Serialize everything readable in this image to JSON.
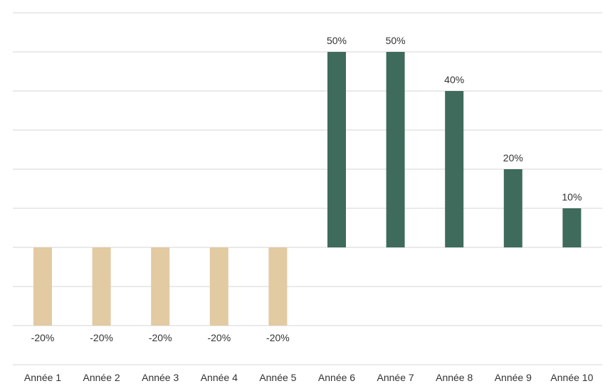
{
  "chart_data": {
    "type": "bar",
    "title": "",
    "xlabel": "",
    "ylabel": "",
    "categories": [
      "Année 1",
      "Année 2",
      "Année 3",
      "Année 4",
      "Année 5",
      "Année 6",
      "Année 7",
      "Année 8",
      "Année 9",
      "Année 10"
    ],
    "values": [
      -20,
      -20,
      -20,
      -20,
      -20,
      50,
      50,
      40,
      20,
      10
    ],
    "data_labels": [
      "-20%",
      "-20%",
      "-20%",
      "-20%",
      "-20%",
      "50%",
      "50%",
      "40%",
      "20%",
      "10%"
    ],
    "ylim": [
      -30,
      60
    ],
    "y_gridline_step": 10,
    "grid": true,
    "y_tick_labels_visible": false,
    "legend": "none",
    "colors": {
      "negative": "#E2CAA2",
      "positive": "#3E6B5C",
      "grid": "#E3E3E3",
      "text": "#333333"
    }
  }
}
